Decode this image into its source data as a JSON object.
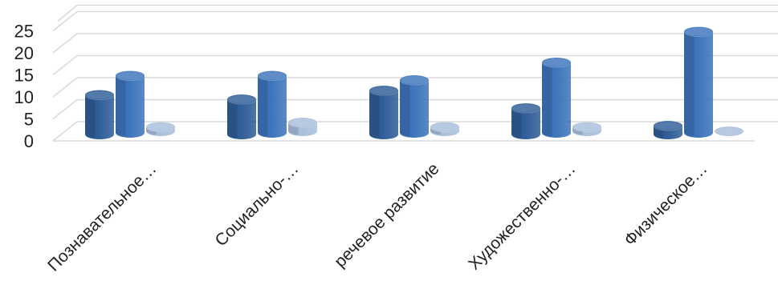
{
  "chart_data": {
    "type": "bar",
    "style": "3d-cylinder",
    "categories": [
      "Познавательное…",
      "Социально-…",
      "речевое развитие",
      "Художественно-…",
      "Физическое…"
    ],
    "series": [
      {
        "values": [
          9,
          8,
          10,
          6,
          2
        ],
        "color": "#2f5d97"
      },
      {
        "values": [
          13,
          13,
          12,
          16,
          23
        ],
        "color": "#3d74bb"
      },
      {
        "values": [
          1,
          2,
          1,
          1,
          0
        ],
        "color": "#a9bfdc"
      }
    ],
    "yticks": [
      "0",
      "5",
      "10",
      "15",
      "20",
      "25"
    ],
    "ylim": [
      0,
      25
    ],
    "grid": true,
    "legend": "none",
    "xlabel": "",
    "ylabel": ""
  }
}
